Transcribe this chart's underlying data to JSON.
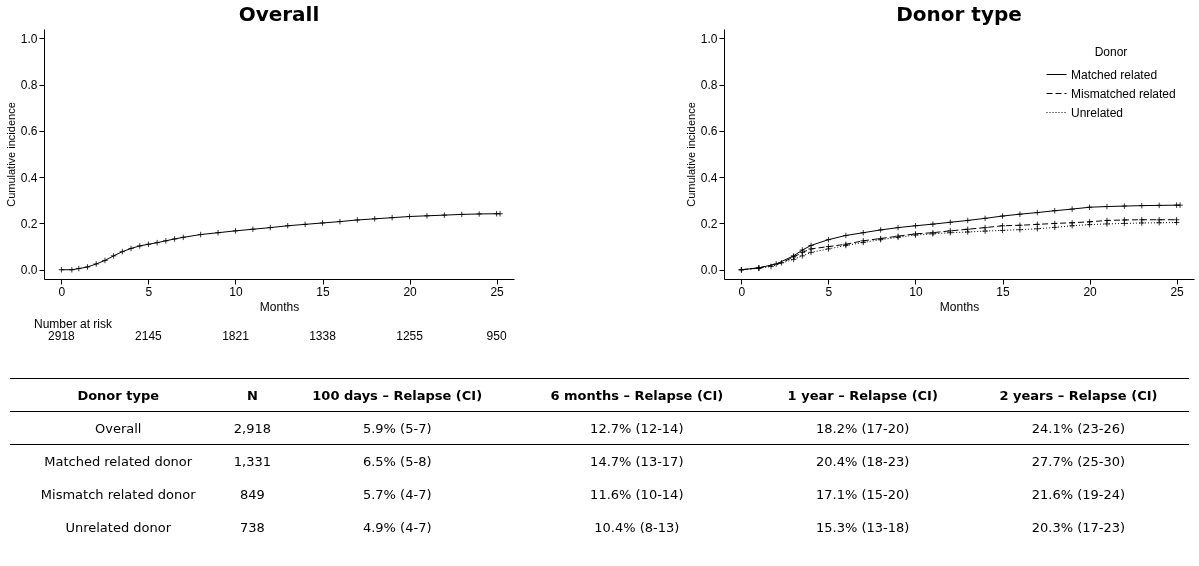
{
  "chart_data": [
    {
      "type": "line",
      "title": "Overall",
      "xlabel": "Months",
      "ylabel": "Cumulative incidence",
      "marker": "cross",
      "line_style": "solid",
      "xlim": [
        -1,
        26
      ],
      "xticks": [
        0,
        5,
        10,
        15,
        20,
        25
      ],
      "ylim": [
        -0.04,
        1.04
      ],
      "yticks": [
        {
          "value": 0,
          "label": "0.0"
        },
        {
          "value": 0.2,
          "label": "0.2"
        },
        {
          "value": 0.4,
          "label": "0.4"
        },
        {
          "value": 0.6,
          "label": "0.6"
        },
        {
          "value": 0.8,
          "label": "0.8"
        },
        {
          "value": 1,
          "label": "1.0"
        }
      ],
      "annotations": [
        "Number at risk",
        "2918",
        "2145",
        "1821",
        "1338",
        "1255",
        "950"
      ],
      "series": [
        {
          "color": "#000000",
          "x": [
            0,
            0.6,
            1,
            1.5,
            2,
            2.5,
            3,
            3.5,
            4,
            4.5,
            5,
            5.5,
            6,
            6.5,
            7,
            8,
            9,
            10,
            11,
            12,
            13,
            14,
            15,
            16,
            17,
            18,
            19,
            20,
            21,
            22,
            23,
            24,
            25,
            25.2
          ],
          "values": [
            0,
            0,
            0.005,
            0.012,
            0.025,
            0.04,
            0.06,
            0.078,
            0.092,
            0.103,
            0.11,
            0.117,
            0.125,
            0.133,
            0.14,
            0.152,
            0.16,
            0.168,
            0.175,
            0.182,
            0.19,
            0.196,
            0.202,
            0.208,
            0.215,
            0.22,
            0.225,
            0.23,
            0.233,
            0.236,
            0.239,
            0.241,
            0.242,
            0.242
          ]
        }
      ]
    },
    {
      "type": "line",
      "title": "Donor type",
      "xlabel": "Months",
      "ylabel": "Cumulative incidence",
      "legend_title": "Donor",
      "legend": "top right",
      "marker": "cross",
      "xlim": [
        -1,
        26
      ],
      "xticks": [
        0,
        5,
        10,
        15,
        20,
        25
      ],
      "ylim": [
        -0.04,
        1.04
      ],
      "yticks": [
        {
          "value": 0,
          "label": "0.0"
        },
        {
          "value": 0.2,
          "label": "0.2"
        },
        {
          "value": 0.4,
          "label": "0.4"
        },
        {
          "value": 0.6,
          "label": "0.6"
        },
        {
          "value": 0.8,
          "label": "0.8"
        },
        {
          "value": 1,
          "label": "1.0"
        }
      ],
      "series": [
        {
          "name": "Matched related",
          "color": "#000000",
          "line_style": "solid",
          "x": [
            0,
            1,
            2,
            3,
            3.5,
            4,
            5,
            6,
            7,
            8,
            9,
            10,
            11,
            12,
            13,
            14,
            15,
            16,
            17,
            18,
            19,
            20,
            21,
            22,
            23,
            24,
            25,
            25.2
          ],
          "values": [
            0,
            0.008,
            0.025,
            0.06,
            0.085,
            0.105,
            0.13,
            0.148,
            0.16,
            0.172,
            0.182,
            0.19,
            0.197,
            0.205,
            0.213,
            0.222,
            0.232,
            0.24,
            0.247,
            0.255,
            0.262,
            0.27,
            0.273,
            0.275,
            0.277,
            0.278,
            0.279,
            0.279
          ]
        },
        {
          "name": "Mismatched related",
          "color": "#000000",
          "line_style": "dashed",
          "x": [
            0,
            1,
            2.3,
            3,
            3.5,
            4,
            5,
            6,
            7,
            8,
            9,
            10,
            11,
            12,
            13,
            14,
            15,
            16,
            17,
            18,
            19,
            20,
            21,
            22,
            23,
            24,
            25
          ],
          "values": [
            0,
            0.008,
            0.03,
            0.055,
            0.075,
            0.09,
            0.1,
            0.11,
            0.125,
            0.135,
            0.145,
            0.155,
            0.16,
            0.168,
            0.175,
            0.182,
            0.19,
            0.192,
            0.196,
            0.2,
            0.203,
            0.207,
            0.213,
            0.215,
            0.216,
            0.216,
            0.216
          ]
        },
        {
          "name": "Unrelated",
          "color": "#000000",
          "line_style": "dotted",
          "x": [
            0,
            1,
            1.7,
            3,
            3.5,
            4,
            5,
            6,
            7,
            8,
            9,
            10,
            11,
            12,
            13,
            14,
            15,
            16,
            17,
            18,
            19,
            20,
            21,
            22,
            23,
            24,
            25
          ],
          "values": [
            0,
            0.006,
            0.014,
            0.045,
            0.06,
            0.075,
            0.09,
            0.105,
            0.118,
            0.13,
            0.14,
            0.15,
            0.155,
            0.16,
            0.163,
            0.167,
            0.17,
            0.173,
            0.177,
            0.183,
            0.19,
            0.195,
            0.198,
            0.2,
            0.202,
            0.203,
            0.204
          ]
        }
      ]
    },
    {
      "type": "other",
      "categories": [
        "Donor type",
        "N",
        "100 days – Relapse (CI)",
        "6 months – Relapse (CI)",
        "1 year – Relapse (CI)",
        "2 years – Relapse (CI)"
      ],
      "y_categories": [
        "Overall",
        "Matched related donor",
        "Mismatch related donor",
        "Unrelated donor"
      ],
      "cell_labels": [
        [
          "2,918",
          "5.9% (5-7)",
          "12.7% (12-14)",
          "18.2% (17-20)",
          "24.1% (23-26)"
        ],
        [
          "1,331",
          "6.5% (5-8)",
          "14.7% (13-17)",
          "20.4% (18-23)",
          "27.7% (25-30)"
        ],
        [
          "849",
          "5.7% (4-7)",
          "11.6% (10-14)",
          "17.1% (15-20)",
          "21.6% (19-24)"
        ],
        [
          "738",
          "4.9% (4-7)",
          "10.4% (8-13)",
          "15.3% (13-18)",
          "20.3% (17-23)"
        ]
      ]
    }
  ]
}
